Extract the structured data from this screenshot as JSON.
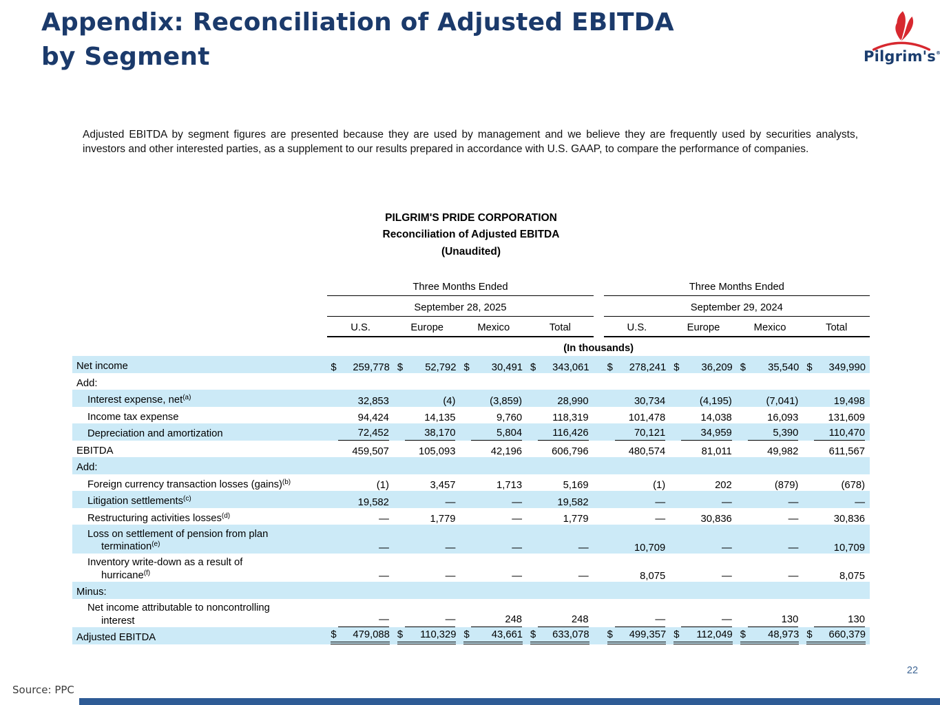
{
  "slide": {
    "title_line1": "Appendix: Reconciliation of Adjusted EBITDA",
    "title_line2": "by Segment",
    "intro": "Adjusted EBITDA by segment figures are presented because they are used by management and we believe they are frequently used by securities analysts, investors and other interested parties, as a supplement to our results prepared in accordance with U.S. GAAP, to compare the performance of companies.",
    "source": "Source: PPC",
    "page_number": "22"
  },
  "logo": {
    "text": "Pilgrim's",
    "reg": "®"
  },
  "colors": {
    "title_navy": "#1B3A6B",
    "logo_navy": "#1B3D6E",
    "logo_red": "#D7282F",
    "zebra_blue": "#CCEAF7",
    "page_number_blue": "#3F6695",
    "footer_bar_blue": "#2E5B95"
  },
  "table": {
    "title_lines": [
      "PILGRIM'S PRIDE CORPORATION",
      "Reconciliation of Adjusted EBITDA",
      "(Unaudited)"
    ],
    "units_note": "(In thousands)",
    "groups": [
      {
        "period": "Three Months Ended",
        "date": "September 28, 2025",
        "columns": [
          "U.S.",
          "Europe",
          "Mexico",
          "Total"
        ]
      },
      {
        "period": "Three Months Ended",
        "date": "September 29, 2024",
        "columns": [
          "U.S.",
          "Europe",
          "Mexico",
          "Total"
        ]
      }
    ],
    "rows": [
      {
        "label": "Net income",
        "sup": "",
        "label2": "",
        "sup2": "",
        "indent": 0,
        "zebra": true,
        "dollar": true,
        "underline": "none",
        "values": [
          "259,778",
          "52,792",
          "30,491",
          "343,061",
          "278,241",
          "36,209",
          "35,540",
          "349,990"
        ]
      },
      {
        "label": "Add:",
        "sup": "",
        "label2": "",
        "sup2": "",
        "indent": 0,
        "zebra": false,
        "dollar": false,
        "underline": "none",
        "values": []
      },
      {
        "label": "Interest expense, net",
        "sup": "(a)",
        "label2": "",
        "sup2": "",
        "indent": 1,
        "zebra": true,
        "dollar": false,
        "underline": "none",
        "values": [
          "32,853",
          "(4)",
          "(3,859)",
          "28,990",
          "30,734",
          "(4,195)",
          "(7,041)",
          "19,498"
        ]
      },
      {
        "label": "Income tax expense",
        "sup": "",
        "label2": "",
        "sup2": "",
        "indent": 1,
        "zebra": false,
        "dollar": false,
        "underline": "none",
        "values": [
          "94,424",
          "14,135",
          "9,760",
          "118,319",
          "101,478",
          "14,038",
          "16,093",
          "131,609"
        ]
      },
      {
        "label": "Depreciation and amortization",
        "sup": "",
        "label2": "",
        "sup2": "",
        "indent": 1,
        "zebra": true,
        "dollar": false,
        "underline": "single",
        "values": [
          "72,452",
          "38,170",
          "5,804",
          "116,426",
          "70,121",
          "34,959",
          "5,390",
          "110,470"
        ]
      },
      {
        "label": "EBITDA",
        "sup": "",
        "label2": "",
        "sup2": "",
        "indent": 0,
        "zebra": false,
        "dollar": false,
        "underline": "none",
        "values": [
          "459,507",
          "105,093",
          "42,196",
          "606,796",
          "480,574",
          "81,011",
          "49,982",
          "611,567"
        ]
      },
      {
        "label": "Add:",
        "sup": "",
        "label2": "",
        "sup2": "",
        "indent": 0,
        "zebra": true,
        "dollar": false,
        "underline": "none",
        "values": []
      },
      {
        "label": "Foreign currency transaction losses (gains)",
        "sup": "(b)",
        "label2": "",
        "sup2": "",
        "indent": 1,
        "zebra": false,
        "dollar": false,
        "underline": "none",
        "values": [
          "(1)",
          "3,457",
          "1,713",
          "5,169",
          "(1)",
          "202",
          "(879)",
          "(678)"
        ]
      },
      {
        "label": "Litigation settlements",
        "sup": "(c)",
        "label2": "",
        "sup2": "",
        "indent": 1,
        "zebra": true,
        "dollar": false,
        "underline": "none",
        "values": [
          "19,582",
          "—",
          "—",
          "19,582",
          "—",
          "—",
          "—",
          "—"
        ]
      },
      {
        "label": "Restructuring activities losses",
        "sup": "(d)",
        "label2": "",
        "sup2": "",
        "indent": 1,
        "zebra": false,
        "dollar": false,
        "underline": "none",
        "values": [
          "—",
          "1,779",
          "—",
          "1,779",
          "—",
          "30,836",
          "—",
          "30,836"
        ]
      },
      {
        "label": "Loss on settlement of pension from plan",
        "sup": "",
        "label2": "termination",
        "sup2": "(e)",
        "indent": 1,
        "zebra": true,
        "dollar": false,
        "underline": "none",
        "values": [
          "—",
          "—",
          "—",
          "—",
          "10,709",
          "—",
          "—",
          "10,709"
        ]
      },
      {
        "label": "Inventory write-down as a result of",
        "sup": "",
        "label2": "hurricane",
        "sup2": "(f)",
        "indent": 1,
        "zebra": false,
        "dollar": false,
        "underline": "none",
        "values": [
          "—",
          "—",
          "—",
          "—",
          "8,075",
          "—",
          "—",
          "8,075"
        ]
      },
      {
        "label": "Minus:",
        "sup": "",
        "label2": "",
        "sup2": "",
        "indent": 0,
        "zebra": true,
        "dollar": false,
        "underline": "none",
        "values": []
      },
      {
        "label": "Net income attributable to noncontrolling",
        "sup": "",
        "label2": "interest",
        "sup2": "",
        "indent": 1,
        "zebra": false,
        "dollar": false,
        "underline": "single",
        "values": [
          "—",
          "—",
          "248",
          "248",
          "—",
          "—",
          "130",
          "130"
        ]
      },
      {
        "label": "Adjusted EBITDA",
        "sup": "",
        "label2": "",
        "sup2": "",
        "indent": 0,
        "zebra": true,
        "dollar": true,
        "underline": "double",
        "values": [
          "479,088",
          "110,329",
          "43,661",
          "633,078",
          "499,357",
          "112,049",
          "48,973",
          "660,379"
        ]
      }
    ]
  }
}
